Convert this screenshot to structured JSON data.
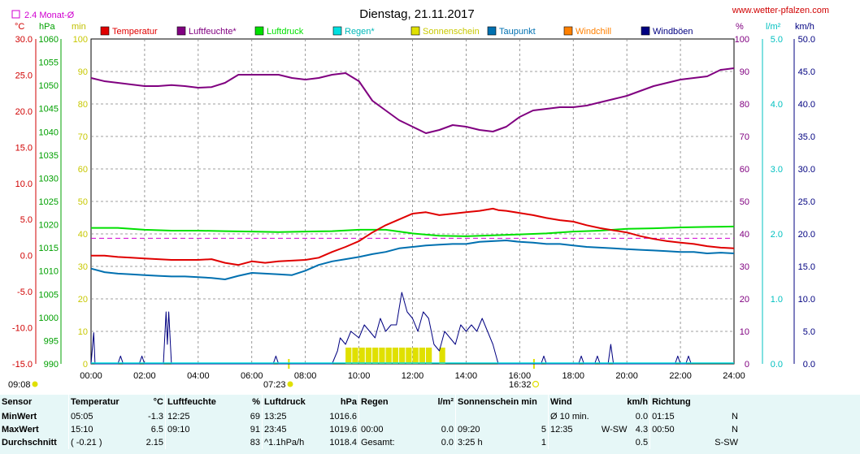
{
  "title": "Dienstag, 21.11.2017",
  "website": "www.wetter-pfalzen.com",
  "monthly_avg_label": "2.4 Monat-Ø",
  "axis_units": {
    "temp": "°C",
    "pressure": "hPa",
    "min": "min",
    "percent": "%",
    "rain": "l/m²",
    "wind": "km/h"
  },
  "legend": [
    {
      "label": "Temperatur",
      "color": "#e00000"
    },
    {
      "label": "Luftfeuchte*",
      "color": "#800080"
    },
    {
      "label": "Luftdruck",
      "color": "#00e000"
    },
    {
      "label": "Regen*",
      "color": "#00e0e0"
    },
    {
      "label": "Sonnenschein",
      "color": "#e0e000"
    },
    {
      "label": "Taupunkt",
      "color": "#0070b0"
    },
    {
      "label": "Windchill",
      "color": "#ff8000"
    },
    {
      "label": "Windböen",
      "color": "#000080"
    }
  ],
  "sunrise": "07:23",
  "sunset": "16:32",
  "bottom_left_time": "09:08",
  "chart_data": {
    "type": "line",
    "x_ticks": [
      "00:00",
      "02:00",
      "04:00",
      "06:00",
      "08:00",
      "10:00",
      "12:00",
      "14:00",
      "16:00",
      "18:00",
      "20:00",
      "22:00",
      "24:00"
    ],
    "axes": {
      "temp_c": {
        "range": [
          -15,
          30
        ],
        "ticks": [
          "30.0",
          "25.0",
          "20.0",
          "15.0",
          "10.0",
          "5.0",
          "0.0",
          "-5.0",
          "-10.0",
          "-15.0"
        ]
      },
      "pressure_hpa": {
        "range": [
          990,
          1060
        ],
        "ticks": [
          "1060",
          "1055",
          "1050",
          "1045",
          "1040",
          "1035",
          "1030",
          "1025",
          "1020",
          "1015",
          "1010",
          "1005",
          "1000",
          "995",
          "990"
        ]
      },
      "sun_min": {
        "range": [
          0,
          100
        ],
        "ticks": [
          "100",
          "90",
          "80",
          "70",
          "60",
          "50",
          "40",
          "30",
          "20",
          "10",
          "0"
        ]
      },
      "humidity_pct": {
        "range": [
          0,
          100
        ],
        "ticks": [
          "100",
          "90",
          "80",
          "70",
          "60",
          "50",
          "40",
          "30",
          "20",
          "10",
          "0"
        ]
      },
      "rain_lm2": {
        "range": [
          0,
          5
        ],
        "ticks": [
          "5.0",
          "4.0",
          "3.0",
          "2.0",
          "1.0",
          "0.0"
        ]
      },
      "wind_kmh": {
        "range": [
          0,
          50
        ],
        "ticks": [
          "50.0",
          "45.0",
          "40.0",
          "35.0",
          "30.0",
          "25.0",
          "20.0",
          "15.0",
          "10.0",
          "5.0",
          "0.0"
        ]
      }
    },
    "monthly_avg_temp": 2.4,
    "series": [
      {
        "name": "Luftfeuchte*",
        "color": "#800080",
        "axis": "humidity_pct",
        "x": [
          0,
          0.5,
          1,
          1.5,
          2,
          2.5,
          3,
          3.5,
          4,
          4.5,
          5,
          5.5,
          6,
          6.5,
          7,
          7.5,
          8,
          8.5,
          9,
          9.5,
          10,
          10.5,
          11,
          11.5,
          12,
          12.5,
          13,
          13.5,
          14,
          14.5,
          15,
          15.5,
          16,
          16.5,
          17,
          17.5,
          18,
          18.5,
          19,
          19.5,
          20,
          20.5,
          21,
          21.5,
          22,
          22.5,
          23,
          23.5,
          24
        ],
        "y": [
          88,
          87,
          86.5,
          86,
          85.5,
          85.5,
          85.8,
          85.5,
          85,
          85.2,
          86.5,
          89,
          89,
          89,
          89,
          88,
          87.5,
          88,
          89,
          89.5,
          87,
          81,
          78,
          75,
          73,
          71,
          72,
          73.5,
          73,
          72,
          71.5,
          73,
          76,
          78,
          78.5,
          79,
          79,
          79.5,
          80.5,
          81.5,
          82.5,
          84,
          85.5,
          86.5,
          87.5,
          88,
          88.5,
          90.5,
          91
        ]
      },
      {
        "name": "Luftdruck",
        "color": "#00e000",
        "axis": "pressure_hpa",
        "x": [
          0,
          1,
          2,
          3,
          4,
          5,
          6,
          7,
          8,
          9,
          10,
          11,
          12,
          13,
          14,
          15,
          16,
          17,
          18,
          19,
          20,
          21,
          22,
          23,
          24
        ],
        "y": [
          1019.3,
          1019.3,
          1018.9,
          1018.7,
          1018.7,
          1018.6,
          1018.5,
          1018.4,
          1018.5,
          1018.6,
          1018.9,
          1018.9,
          1018.1,
          1017.6,
          1017.5,
          1017.7,
          1017.9,
          1018.1,
          1018.5,
          1018.7,
          1019.1,
          1019.2,
          1019.4,
          1019.5,
          1019.6
        ]
      },
      {
        "name": "Temperatur",
        "color": "#e00000",
        "axis": "temp_c",
        "x": [
          0,
          0.5,
          1,
          1.5,
          2,
          2.5,
          3,
          3.5,
          4,
          4.5,
          5,
          5.5,
          6,
          6.5,
          7,
          7.5,
          8,
          8.5,
          9,
          9.5,
          10,
          10.5,
          11,
          11.5,
          12,
          12.5,
          13,
          13.5,
          14,
          14.5,
          15,
          15.2,
          15.5,
          16,
          16.5,
          17,
          17.5,
          18,
          18.5,
          19,
          19.5,
          20,
          20.5,
          21,
          21.5,
          22,
          22.5,
          23,
          23.5,
          24
        ],
        "y": [
          0,
          0,
          -0.2,
          -0.3,
          -0.4,
          -0.5,
          -0.6,
          -0.6,
          -0.6,
          -0.5,
          -1.0,
          -1.3,
          -0.8,
          -1.0,
          -0.8,
          -0.7,
          -0.6,
          -0.3,
          0.5,
          1.2,
          2.0,
          3.2,
          4.2,
          5.0,
          5.8,
          6.0,
          5.6,
          5.8,
          6.0,
          6.2,
          6.5,
          6.3,
          6.2,
          5.9,
          5.6,
          5.2,
          4.9,
          4.7,
          4.2,
          3.8,
          3.5,
          3.2,
          2.7,
          2.3,
          2.0,
          1.8,
          1.6,
          1.3,
          1.1,
          1.0
        ]
      },
      {
        "name": "Taupunkt",
        "color": "#0070b0",
        "axis": "temp_c",
        "x": [
          0,
          0.5,
          1,
          1.5,
          2,
          2.5,
          3,
          3.5,
          4,
          4.5,
          5,
          5.5,
          6,
          6.5,
          7,
          7.5,
          8,
          8.5,
          9,
          9.5,
          10,
          10.5,
          11,
          11.5,
          12,
          12.5,
          13,
          13.5,
          14,
          14.5,
          15,
          15.5,
          16,
          16.5,
          17,
          17.5,
          18,
          18.5,
          19,
          19.5,
          20,
          20.5,
          21,
          21.5,
          22,
          22.5,
          23,
          23.5,
          24
        ],
        "y": [
          -1.8,
          -2.3,
          -2.5,
          -2.6,
          -2.7,
          -2.8,
          -2.9,
          -2.9,
          -3.0,
          -3.1,
          -3.3,
          -2.8,
          -2.4,
          -2.5,
          -2.6,
          -2.7,
          -2.1,
          -1.3,
          -0.8,
          -0.5,
          -0.2,
          0.2,
          0.5,
          1.0,
          1.2,
          1.4,
          1.5,
          1.6,
          1.6,
          1.9,
          2.0,
          2.1,
          1.9,
          1.8,
          1.6,
          1.6,
          1.4,
          1.2,
          1.1,
          1.0,
          0.9,
          0.8,
          0.7,
          0.6,
          0.5,
          0.5,
          0.3,
          0.4,
          0.3
        ]
      },
      {
        "name": "Sonnenschein",
        "color": "#e0e000",
        "axis": "sun_min",
        "type": "bar",
        "x": [
          9.5,
          9.75,
          10,
          10.25,
          10.5,
          10.75,
          11,
          11.25,
          11.5,
          11.75,
          12,
          12.25,
          12.5,
          12.75,
          13
        ],
        "y": [
          5,
          5,
          5,
          5,
          5,
          5,
          5,
          5,
          5,
          5,
          5,
          5,
          5,
          0,
          5
        ]
      },
      {
        "name": "Windböen",
        "color": "#000080",
        "axis": "wind_kmh",
        "x": [
          0,
          0.1,
          0.15,
          0.25,
          1,
          1.1,
          1.2,
          1.8,
          1.9,
          2,
          2.7,
          2.8,
          2.85,
          2.9,
          3,
          6.8,
          6.9,
          7,
          9,
          9.2,
          9.3,
          9.5,
          9.7,
          10,
          10.2,
          10.4,
          10.6,
          10.8,
          11,
          11.2,
          11.4,
          11.6,
          11.8,
          12,
          12.2,
          12.4,
          12.6,
          12.8,
          13,
          13.2,
          13.4,
          13.6,
          13.8,
          14,
          14.2,
          14.4,
          14.6,
          14.8,
          15,
          15.2,
          16.8,
          16.9,
          17,
          18.2,
          18.3,
          18.4,
          18.8,
          18.9,
          19,
          19.3,
          19.4,
          19.5,
          21.8,
          21.9,
          22,
          22.2,
          22.3,
          22.4
        ],
        "y": [
          0,
          4.8,
          0,
          0,
          0,
          1.2,
          0,
          0,
          1.2,
          0,
          0,
          8,
          3,
          8,
          0,
          0,
          1.2,
          0,
          0,
          2,
          4,
          3,
          5,
          4,
          6,
          5,
          4,
          7,
          5,
          6,
          6,
          11,
          8,
          7,
          5,
          8,
          7,
          3,
          2,
          5,
          4,
          3,
          6,
          5,
          6,
          5,
          7,
          5,
          3,
          0,
          0,
          1.2,
          0,
          0,
          1.2,
          0,
          0,
          1.2,
          0,
          0,
          3,
          0,
          0,
          1.2,
          0,
          0,
          1.2,
          0
        ]
      }
    ]
  },
  "stats": {
    "headers": {
      "sensor": "Sensor",
      "temp": "Temperatur",
      "temp_unit": "°C",
      "hum": "Luftfeuchte",
      "hum_unit": "%",
      "press": "Luftdruck",
      "press_unit": "hPa",
      "rain": "Regen",
      "rain_unit": "l/m²",
      "sun": "Sonnenschein min",
      "wind": "Wind",
      "wind_unit": "km/h",
      "dir": "Richtung"
    },
    "rows": [
      {
        "label": "MinWert",
        "temp_time": "05:05",
        "temp_val": "-1.3",
        "hum_time": "12:25",
        "hum_val": "69",
        "press_time": "13:25",
        "press_val": "1016.6",
        "rain_time": "",
        "rain_val": "",
        "sun_time": "",
        "sun_val": "",
        "wind_time": "Ø 10 min.",
        "wind_dir": "",
        "wind_val": "0.0",
        "dir_time": "01:15",
        "dir_val": "N"
      },
      {
        "label": "MaxWert",
        "temp_time": "15:10",
        "temp_val": "6.5",
        "hum_time": "09:10",
        "hum_val": "91",
        "press_time": "23:45",
        "press_val": "1019.6",
        "rain_time": "00:00",
        "rain_val": "0.0",
        "sun_time": "09:20",
        "sun_val": "5",
        "wind_time": "12:35",
        "wind_dir": "W-SW",
        "wind_val": "4.3",
        "dir_time": "00:50",
        "dir_val": "N"
      },
      {
        "label": "Durchschnitt",
        "temp_time": "( -0.21 )",
        "temp_val": "2.15",
        "hum_time": "",
        "hum_val": "83",
        "press_time": "^1.1hPa/h",
        "press_val": "1018.4",
        "rain_time": "Gesamt:",
        "rain_val": "0.0",
        "sun_time": "3:25 h",
        "sun_val": "1",
        "wind_time": "",
        "wind_dir": "",
        "wind_val": "0.5",
        "dir_time": "",
        "dir_val": "S-SW"
      }
    ]
  }
}
